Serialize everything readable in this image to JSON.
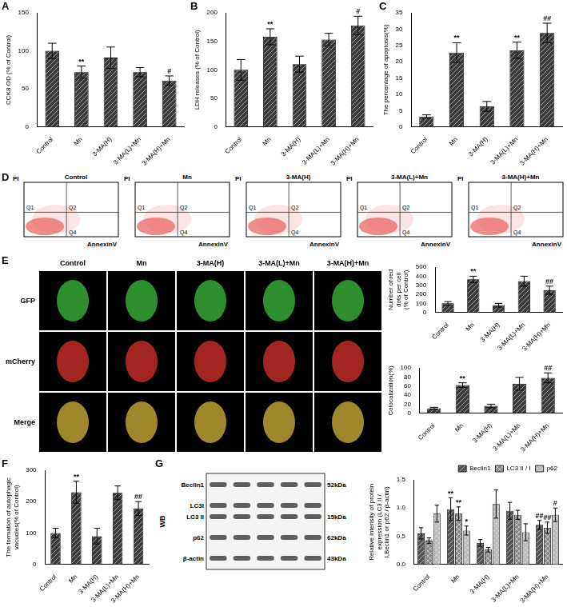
{
  "chart_data": [
    {
      "panel": "A",
      "type": "bar",
      "categories": [
        "Control",
        "Mn",
        "3-MA(H)",
        "3-MA(L)+Mn",
        "3-MA(H)+Mn"
      ],
      "values": [
        100,
        72,
        91,
        72,
        61
      ],
      "errors": [
        10,
        8,
        14,
        6,
        6
      ],
      "annotations": [
        null,
        "**",
        null,
        null,
        "#"
      ],
      "color": "#3a3a3a",
      "y_label": "CCK8 OD (% of Control)",
      "ylim": [
        0,
        150
      ],
      "yticks": [
        0,
        50,
        100,
        150
      ],
      "grid": false
    },
    {
      "panel": "B",
      "type": "bar",
      "categories": [
        "Control",
        "Mn",
        "3-MA(H)",
        "3-MA(L)+Mn",
        "3-MA(H)+Mn"
      ],
      "values": [
        100,
        158,
        110,
        153,
        178
      ],
      "errors": [
        18,
        14,
        14,
        11,
        16
      ],
      "annotations": [
        null,
        "**",
        null,
        null,
        "#"
      ],
      "color": "#3a3a3a",
      "y_label": "LDH releases (% of Control)",
      "ylim": [
        0,
        200
      ],
      "yticks": [
        0,
        50,
        100,
        150,
        200
      ],
      "grid": false
    },
    {
      "panel": "C",
      "type": "bar",
      "categories": [
        "Control",
        "Mn",
        "3-MA(H)",
        "3-MA(L)+Mn",
        "3-MA(H)+Mn"
      ],
      "values": [
        3.2,
        22.8,
        6.3,
        23.5,
        28.8
      ],
      "errors": [
        0.5,
        3,
        1.5,
        2.5,
        3
      ],
      "annotations": [
        null,
        "**",
        null,
        "**",
        "##"
      ],
      "color": "#3a3a3a",
      "y_label": "The percentage of apoptosis(%)",
      "ylim": [
        0,
        35
      ],
      "yticks": [
        0,
        5,
        10,
        15,
        20,
        25,
        30,
        35
      ],
      "grid": false
    },
    {
      "type": "bar",
      "categories": [
        "Control",
        "Mn",
        "3-MA(H)",
        "3-MA(L)+Mn",
        "3-MA(H)+Mn"
      ],
      "values": [
        100,
        365,
        80,
        345,
        245
      ],
      "errors": [
        20,
        35,
        20,
        55,
        45
      ],
      "annotations": [
        null,
        "**",
        null,
        null,
        "##"
      ],
      "color": "#3a3a3a",
      "y_label": "Number of red dots per cell (% of Control)",
      "ylim": [
        0,
        500
      ],
      "yticks": [
        0,
        100,
        200,
        300,
        400,
        500
      ],
      "grid": false
    },
    {
      "type": "bar",
      "categories": [
        "Control",
        "Mn",
        "3-MA(H)",
        "3-MA(L)+Mn",
        "3-MA(H)+Mn"
      ],
      "values": [
        11,
        62,
        16,
        65,
        78
      ],
      "errors": [
        2,
        5,
        4,
        14,
        11
      ],
      "annotations": [
        null,
        "**",
        null,
        null,
        "##"
      ],
      "color": "#3a3a3a",
      "y_label": "Colocalization(%)",
      "ylim": [
        0,
        100
      ],
      "yticks": [
        0,
        20,
        40,
        60,
        80,
        100
      ],
      "grid": false
    },
    {
      "panel": "F",
      "type": "bar",
      "categories": [
        "Control",
        "Mn",
        "3-MA(H)",
        "3-MA(L)+Mn",
        "3-MA(H)+Mn"
      ],
      "values": [
        100,
        230,
        90,
        228,
        178
      ],
      "errors": [
        15,
        35,
        25,
        22,
        22
      ],
      "annotations": [
        null,
        "**",
        null,
        null,
        "##"
      ],
      "color": "#3a3a3a",
      "y_label": "The formation of autophagic vacuoles(% of Control)",
      "ylim": [
        0,
        300
      ],
      "yticks": [
        0,
        100,
        200,
        300
      ],
      "grid": false
    },
    {
      "type": "bar",
      "categories": [
        "Control",
        "Mn",
        "3-MA(H)",
        "3-MA(L)+Mn",
        "3-MA(H)+Mn"
      ],
      "series": [
        {
          "name": "Beclin1",
          "color": "#555555",
          "values": [
            0.55,
            0.98,
            0.38,
            0.95,
            0.7
          ],
          "errors": [
            0.1,
            0.2,
            0.06,
            0.15,
            0.08
          ],
          "annotations": [
            null,
            "**",
            null,
            null,
            "##"
          ]
        },
        {
          "name": "LC3 II / I",
          "color": "#8a8a8a",
          "values": [
            0.42,
            0.9,
            0.26,
            0.88,
            0.65
          ],
          "errors": [
            0.05,
            0.12,
            0.04,
            0.08,
            0.1
          ],
          "annotations": [
            null,
            "**",
            null,
            null,
            "##"
          ]
        },
        {
          "name": "p62",
          "color": "#bdbdbd",
          "values": [
            0.9,
            0.6,
            1.07,
            0.57,
            0.88
          ],
          "errors": [
            0.15,
            0.08,
            0.25,
            0.15,
            0.12
          ],
          "annotations": [
            null,
            "*",
            null,
            null,
            "#"
          ]
        }
      ],
      "y_label": "Relative intensity of protein expression (LC3 II / I,Beclin1 or p62 / β-actin)",
      "ylim": [
        0,
        1.5
      ],
      "yticks": [
        {
          "value": 0,
          "label": "0.0"
        },
        {
          "value": 0.5,
          "label": "0.5"
        },
        {
          "value": 1,
          "label": "1.0"
        },
        {
          "value": 1.5,
          "label": "1.5"
        }
      ],
      "grid": false,
      "legend": "upper right"
    }
  ],
  "flow_cytometry": {
    "panel": "D",
    "x_label": "AnnexinV",
    "y_label": "PI",
    "quadrant_labels": [
      "Q1",
      "Q2",
      "Q4"
    ],
    "samples": [
      "Control",
      "Mn",
      "3-MA(H)",
      "3-MA(L)+Mn",
      "3-MA(H)+Mn"
    ]
  },
  "fluorescence_images": {
    "panel": "E",
    "columns": [
      "Control",
      "Mn",
      "3-MA(H)",
      "3-MA(L)+Mn",
      "3-MA(H)+Mn"
    ],
    "rows": [
      "GFP",
      "mCherry",
      "Merge"
    ]
  },
  "western_blot": {
    "panel": "G",
    "method": "WB",
    "bands": [
      {
        "name": "Beclin1",
        "size": "52kDa"
      },
      {
        "name": "LC3I",
        "size": null
      },
      {
        "name": "LC3 II",
        "size": "15kDa"
      },
      {
        "name": "p62",
        "size": "62kDa"
      },
      {
        "name": "β-actin",
        "size": "43kDa"
      }
    ]
  }
}
